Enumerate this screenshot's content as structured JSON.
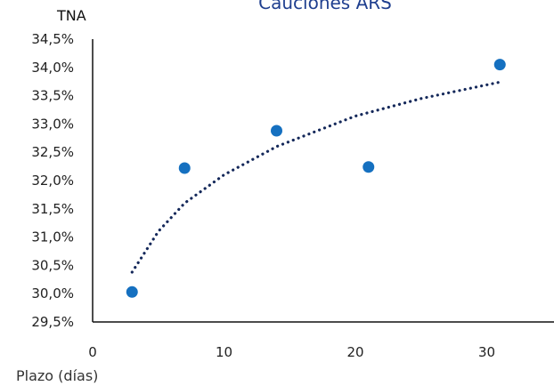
{
  "chart_data": {
    "type": "scatter",
    "title": "Cauciones ARS",
    "title_color": "#1f3f8f",
    "xlabel": "Plazo (días)",
    "ylabel": "TNA",
    "xlim": [
      0,
      35
    ],
    "ylim": [
      29.5,
      34.5
    ],
    "x_ticks": [
      {
        "value": 0,
        "label": "0"
      },
      {
        "value": 10,
        "label": "10"
      },
      {
        "value": 20,
        "label": "20"
      },
      {
        "value": 30,
        "label": "30"
      }
    ],
    "y_ticks": [
      {
        "value": 29.5,
        "label": "29,5%"
      },
      {
        "value": 30.0,
        "label": "30,0%"
      },
      {
        "value": 30.5,
        "label": "30,5%"
      },
      {
        "value": 31.0,
        "label": "31,0%"
      },
      {
        "value": 31.5,
        "label": "31,5%"
      },
      {
        "value": 32.0,
        "label": "32,0%"
      },
      {
        "value": 32.5,
        "label": "32,5%"
      },
      {
        "value": 33.0,
        "label": "33,0%"
      },
      {
        "value": 33.5,
        "label": "33,5%"
      },
      {
        "value": 34.0,
        "label": "34,0%"
      },
      {
        "value": 34.5,
        "label": "34,5%"
      }
    ],
    "grid": false,
    "legend": false,
    "series": [
      {
        "type": "scatter",
        "color": "#1570c0",
        "points": [
          {
            "x": 3,
            "y": 30.03
          },
          {
            "x": 7,
            "y": 32.22
          },
          {
            "x": 14,
            "y": 32.88
          },
          {
            "x": 21,
            "y": 32.24
          },
          {
            "x": 31,
            "y": 34.05
          }
        ]
      }
    ],
    "trendline": {
      "type": "logarithmic",
      "style": "dotted",
      "color": "#14285a",
      "x_range": [
        3,
        31
      ],
      "approx_points": [
        {
          "x": 3,
          "y": 30.38
        },
        {
          "x": 5,
          "y": 31.1
        },
        {
          "x": 7,
          "y": 31.6
        },
        {
          "x": 10,
          "y": 32.1
        },
        {
          "x": 14,
          "y": 32.6
        },
        {
          "x": 20,
          "y": 33.14
        },
        {
          "x": 25,
          "y": 33.45
        },
        {
          "x": 31,
          "y": 33.74
        }
      ]
    }
  }
}
